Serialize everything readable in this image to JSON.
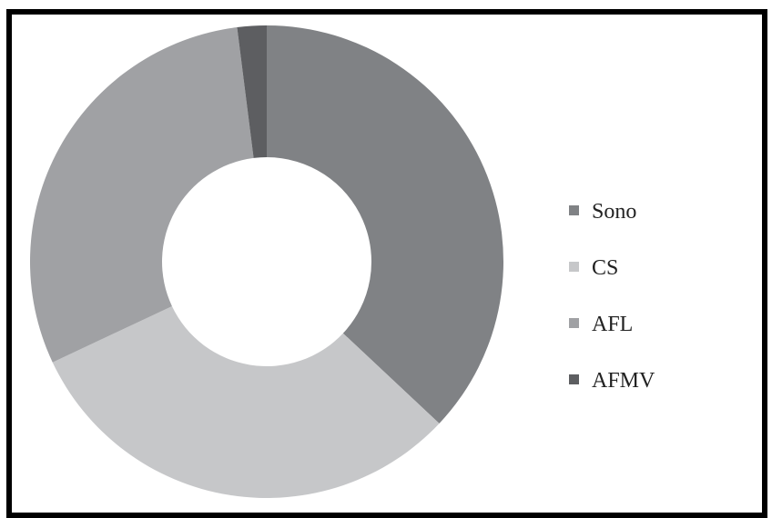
{
  "chart_data": {
    "type": "pie",
    "donut": true,
    "title": "",
    "categories": [
      "Sono",
      "CS",
      "AFL",
      "AFMV"
    ],
    "values": [
      37,
      31,
      30,
      2
    ],
    "unit": "%",
    "colors": [
      "#808285",
      "#c6c7c9",
      "#a0a1a4",
      "#5d5e61"
    ],
    "legend": {
      "position": "right",
      "entries": [
        "Sono",
        "CS",
        "AFL",
        "AFMV"
      ]
    }
  }
}
